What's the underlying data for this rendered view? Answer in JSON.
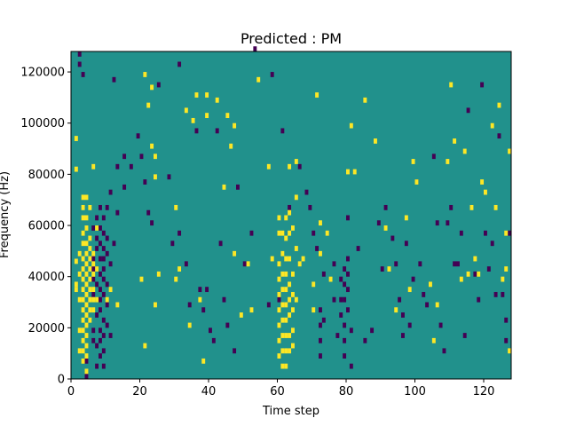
{
  "chart_data": {
    "type": "heatmap",
    "title": "Predicted : PM",
    "xlabel": "Time step",
    "ylabel": "Frequency (Hz)",
    "xlim": [
      0,
      128
    ],
    "ylim": [
      0,
      128000
    ],
    "xticks": [
      0,
      20,
      40,
      60,
      80,
      100,
      120
    ],
    "yticks": [
      0,
      20000,
      40000,
      60000,
      80000,
      100000,
      120000
    ],
    "grid": false,
    "legend": "none",
    "colormap": {
      "low": "#440154",
      "mid": "#21918c",
      "high": "#fde725"
    },
    "value_levels": [
      -1,
      0,
      1
    ],
    "background_value": 0,
    "yellow_cells": [
      [
        1,
        93000
      ],
      [
        1,
        81000
      ],
      [
        1,
        45000
      ],
      [
        1,
        36000
      ],
      [
        1,
        34000
      ],
      [
        2,
        48000
      ],
      [
        2,
        40000
      ],
      [
        2,
        30000
      ],
      [
        2,
        18000
      ],
      [
        2,
        10000
      ],
      [
        3,
        70000
      ],
      [
        3,
        66000
      ],
      [
        3,
        62000
      ],
      [
        3,
        56000
      ],
      [
        3,
        52000
      ],
      [
        3,
        46000
      ],
      [
        3,
        42000
      ],
      [
        3,
        38000
      ],
      [
        3,
        34000
      ],
      [
        3,
        30000
      ],
      [
        3,
        26000
      ],
      [
        3,
        22000
      ],
      [
        3,
        18000
      ],
      [
        3,
        14000
      ],
      [
        3,
        10000
      ],
      [
        3,
        6000
      ],
      [
        4,
        70000
      ],
      [
        4,
        62000
      ],
      [
        4,
        58000
      ],
      [
        4,
        52000
      ],
      [
        4,
        48000
      ],
      [
        4,
        44000
      ],
      [
        4,
        40000
      ],
      [
        4,
        36000
      ],
      [
        4,
        32000
      ],
      [
        4,
        28000
      ],
      [
        4,
        24000
      ],
      [
        4,
        20000
      ],
      [
        4,
        16000
      ],
      [
        4,
        12000
      ],
      [
        4,
        8000
      ],
      [
        4,
        2000
      ],
      [
        5,
        66000
      ],
      [
        5,
        54000
      ],
      [
        5,
        50000
      ],
      [
        5,
        46000
      ],
      [
        5,
        42000
      ],
      [
        5,
        38000
      ],
      [
        5,
        34000
      ],
      [
        5,
        30000
      ],
      [
        5,
        26000
      ],
      [
        5,
        22000
      ],
      [
        6,
        82000
      ],
      [
        6,
        48000
      ],
      [
        6,
        44000
      ],
      [
        6,
        40000
      ],
      [
        6,
        34000
      ],
      [
        6,
        30000
      ],
      [
        6,
        26000
      ],
      [
        7,
        58000
      ],
      [
        7,
        42000
      ],
      [
        7,
        30000
      ],
      [
        10,
        30000
      ],
      [
        11,
        34000
      ],
      [
        13,
        28000
      ],
      [
        20,
        38000
      ],
      [
        21,
        118000
      ],
      [
        21,
        12000
      ],
      [
        22,
        106000
      ],
      [
        23,
        113000
      ],
      [
        23,
        90000
      ],
      [
        24,
        86000
      ],
      [
        24,
        78000
      ],
      [
        24,
        28000
      ],
      [
        25,
        40000
      ],
      [
        30,
        66000
      ],
      [
        30,
        38000
      ],
      [
        31,
        42000
      ],
      [
        33,
        104000
      ],
      [
        34,
        20000
      ],
      [
        35,
        100000
      ],
      [
        36,
        110000
      ],
      [
        37,
        30000
      ],
      [
        38,
        6000
      ],
      [
        39,
        110000
      ],
      [
        39,
        102000
      ],
      [
        42,
        108000
      ],
      [
        44,
        74000
      ],
      [
        45,
        102000
      ],
      [
        46,
        90000
      ],
      [
        47,
        98000
      ],
      [
        47,
        48000
      ],
      [
        49,
        24000
      ],
      [
        51,
        44000
      ],
      [
        52,
        26000
      ],
      [
        54,
        116000
      ],
      [
        57,
        82000
      ],
      [
        58,
        46000
      ],
      [
        60,
        62000
      ],
      [
        60,
        56000
      ],
      [
        60,
        44000
      ],
      [
        60,
        38000
      ],
      [
        60,
        32000
      ],
      [
        60,
        26000
      ],
      [
        60,
        20000
      ],
      [
        60,
        14000
      ],
      [
        60,
        8000
      ],
      [
        61,
        56000
      ],
      [
        61,
        48000
      ],
      [
        61,
        40000
      ],
      [
        61,
        34000
      ],
      [
        61,
        28000
      ],
      [
        61,
        22000
      ],
      [
        61,
        16000
      ],
      [
        61,
        10000
      ],
      [
        61,
        4000
      ],
      [
        62,
        62000
      ],
      [
        62,
        54000
      ],
      [
        62,
        46000
      ],
      [
        62,
        40000
      ],
      [
        62,
        34000
      ],
      [
        62,
        28000
      ],
      [
        62,
        22000
      ],
      [
        62,
        16000
      ],
      [
        62,
        10000
      ],
      [
        62,
        4000
      ],
      [
        63,
        82000
      ],
      [
        63,
        64000
      ],
      [
        63,
        56000
      ],
      [
        63,
        46000
      ],
      [
        63,
        36000
      ],
      [
        63,
        30000
      ],
      [
        63,
        24000
      ],
      [
        63,
        16000
      ],
      [
        63,
        10000
      ],
      [
        64,
        58000
      ],
      [
        64,
        40000
      ],
      [
        64,
        32000
      ],
      [
        64,
        26000
      ],
      [
        64,
        18000
      ],
      [
        64,
        12000
      ],
      [
        65,
        84000
      ],
      [
        65,
        70000
      ],
      [
        65,
        50000
      ],
      [
        65,
        30000
      ],
      [
        66,
        44000
      ],
      [
        67,
        46000
      ],
      [
        70,
        36000
      ],
      [
        70,
        26000
      ],
      [
        71,
        110000
      ],
      [
        72,
        60000
      ],
      [
        72,
        48000
      ],
      [
        74,
        56000
      ],
      [
        75,
        38000
      ],
      [
        80,
        80000
      ],
      [
        81,
        98000
      ],
      [
        82,
        80000
      ],
      [
        85,
        108000
      ],
      [
        88,
        92000
      ],
      [
        91,
        58000
      ],
      [
        92,
        42000
      ],
      [
        94,
        26000
      ],
      [
        97,
        62000
      ],
      [
        98,
        34000
      ],
      [
        99,
        84000
      ],
      [
        100,
        76000
      ],
      [
        104,
        36000
      ],
      [
        105,
        14000
      ],
      [
        106,
        28000
      ],
      [
        109,
        84000
      ],
      [
        110,
        114000
      ],
      [
        111,
        92000
      ],
      [
        113,
        38000
      ],
      [
        114,
        88000
      ],
      [
        115,
        40000
      ],
      [
        116,
        66000
      ],
      [
        117,
        46000
      ],
      [
        118,
        40000
      ],
      [
        119,
        76000
      ],
      [
        120,
        72000
      ],
      [
        122,
        98000
      ],
      [
        123,
        66000
      ],
      [
        124,
        106000
      ],
      [
        125,
        38000
      ],
      [
        126,
        56000
      ],
      [
        126,
        42000
      ],
      [
        127,
        88000
      ],
      [
        127,
        10000
      ]
    ],
    "purple_cells": [
      [
        2,
        126000
      ],
      [
        2,
        122000
      ],
      [
        3,
        118000
      ],
      [
        4,
        6000
      ],
      [
        4,
        0
      ],
      [
        6,
        58000
      ],
      [
        6,
        46000
      ],
      [
        6,
        42000
      ],
      [
        6,
        38000
      ],
      [
        6,
        32000
      ],
      [
        6,
        18000
      ],
      [
        6,
        14000
      ],
      [
        7,
        62000
      ],
      [
        7,
        54000
      ],
      [
        7,
        50000
      ],
      [
        7,
        42000
      ],
      [
        7,
        36000
      ],
      [
        7,
        24000
      ],
      [
        7,
        12000
      ],
      [
        7,
        4000
      ],
      [
        8,
        66000
      ],
      [
        8,
        58000
      ],
      [
        8,
        52000
      ],
      [
        8,
        46000
      ],
      [
        8,
        40000
      ],
      [
        8,
        34000
      ],
      [
        8,
        30000
      ],
      [
        8,
        26000
      ],
      [
        8,
        18000
      ],
      [
        8,
        14000
      ],
      [
        8,
        8000
      ],
      [
        9,
        62000
      ],
      [
        9,
        56000
      ],
      [
        9,
        50000
      ],
      [
        9,
        46000
      ],
      [
        9,
        42000
      ],
      [
        9,
        38000
      ],
      [
        9,
        32000
      ],
      [
        9,
        22000
      ],
      [
        9,
        16000
      ],
      [
        9,
        10000
      ],
      [
        9,
        4000
      ],
      [
        10,
        66000
      ],
      [
        10,
        54000
      ],
      [
        10,
        48000
      ],
      [
        10,
        36000
      ],
      [
        10,
        28000
      ],
      [
        10,
        20000
      ],
      [
        11,
        72000
      ],
      [
        11,
        44000
      ],
      [
        11,
        16000
      ],
      [
        12,
        116000
      ],
      [
        12,
        52000
      ],
      [
        13,
        82000
      ],
      [
        13,
        64000
      ],
      [
        15,
        86000
      ],
      [
        15,
        74000
      ],
      [
        17,
        82000
      ],
      [
        19,
        94000
      ],
      [
        20,
        86000
      ],
      [
        21,
        76000
      ],
      [
        22,
        64000
      ],
      [
        23,
        60000
      ],
      [
        25,
        114000
      ],
      [
        28,
        78000
      ],
      [
        29,
        52000
      ],
      [
        31,
        122000
      ],
      [
        31,
        56000
      ],
      [
        33,
        44000
      ],
      [
        34,
        28000
      ],
      [
        36,
        96000
      ],
      [
        37,
        34000
      ],
      [
        38,
        26000
      ],
      [
        39,
        34000
      ],
      [
        40,
        18000
      ],
      [
        41,
        14000
      ],
      [
        42,
        96000
      ],
      [
        43,
        52000
      ],
      [
        44,
        30000
      ],
      [
        45,
        20000
      ],
      [
        47,
        10000
      ],
      [
        48,
        74000
      ],
      [
        50,
        44000
      ],
      [
        52,
        56000
      ],
      [
        53,
        128000
      ],
      [
        57,
        28000
      ],
      [
        58,
        118000
      ],
      [
        60,
        30000
      ],
      [
        61,
        96000
      ],
      [
        63,
        66000
      ],
      [
        66,
        82000
      ],
      [
        68,
        72000
      ],
      [
        69,
        66000
      ],
      [
        70,
        56000
      ],
      [
        71,
        50000
      ],
      [
        72,
        26000
      ],
      [
        72,
        20000
      ],
      [
        72,
        14000
      ],
      [
        72,
        8000
      ],
      [
        73,
        40000
      ],
      [
        73,
        22000
      ],
      [
        76,
        44000
      ],
      [
        76,
        30000
      ],
      [
        77,
        16000
      ],
      [
        78,
        38000
      ],
      [
        78,
        30000
      ],
      [
        78,
        24000
      ],
      [
        79,
        42000
      ],
      [
        79,
        36000
      ],
      [
        79,
        30000
      ],
      [
        79,
        20000
      ],
      [
        79,
        14000
      ],
      [
        79,
        8000
      ],
      [
        80,
        62000
      ],
      [
        80,
        46000
      ],
      [
        80,
        40000
      ],
      [
        80,
        34000
      ],
      [
        80,
        26000
      ],
      [
        81,
        18000
      ],
      [
        81,
        4000
      ],
      [
        83,
        50000
      ],
      [
        85,
        14000
      ],
      [
        87,
        18000
      ],
      [
        89,
        60000
      ],
      [
        90,
        42000
      ],
      [
        91,
        66000
      ],
      [
        93,
        54000
      ],
      [
        94,
        44000
      ],
      [
        95,
        30000
      ],
      [
        96,
        24000
      ],
      [
        96,
        16000
      ],
      [
        97,
        52000
      ],
      [
        98,
        20000
      ],
      [
        99,
        38000
      ],
      [
        100,
        76000
      ],
      [
        101,
        44000
      ],
      [
        102,
        32000
      ],
      [
        103,
        28000
      ],
      [
        105,
        86000
      ],
      [
        106,
        60000
      ],
      [
        107,
        20000
      ],
      [
        108,
        10000
      ],
      [
        109,
        60000
      ],
      [
        110,
        66000
      ],
      [
        111,
        44000
      ],
      [
        112,
        44000
      ],
      [
        113,
        56000
      ],
      [
        114,
        16000
      ],
      [
        115,
        104000
      ],
      [
        117,
        40000
      ],
      [
        118,
        30000
      ],
      [
        119,
        114000
      ],
      [
        120,
        56000
      ],
      [
        121,
        42000
      ],
      [
        122,
        52000
      ],
      [
        123,
        32000
      ],
      [
        124,
        94000
      ],
      [
        125,
        32000
      ],
      [
        126,
        22000
      ],
      [
        126,
        14000
      ],
      [
        127,
        56000
      ]
    ]
  }
}
